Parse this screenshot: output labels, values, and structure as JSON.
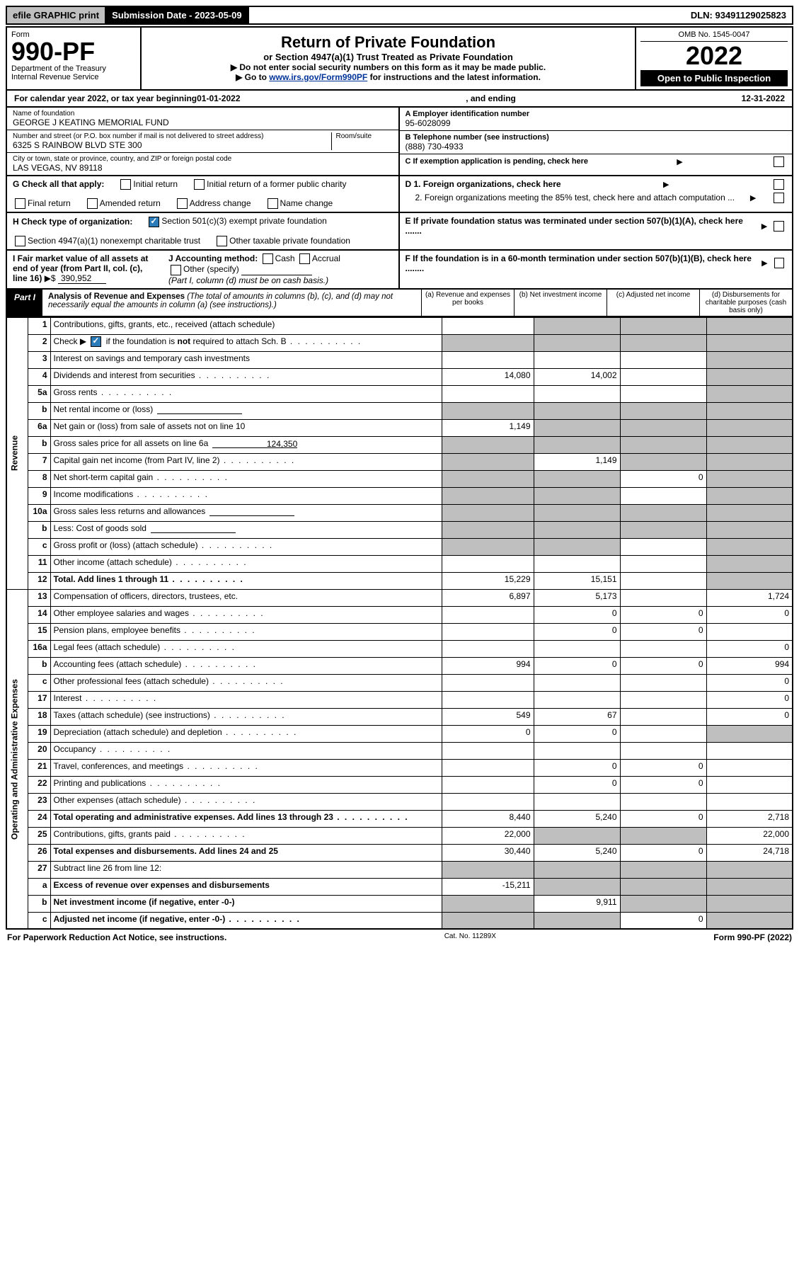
{
  "topbar": {
    "efile": "efile GRAPHIC print",
    "submission_label": "Submission Date - 2023-05-09",
    "dln_label": "DLN: 93491129025823"
  },
  "header": {
    "form_word": "Form",
    "form_number": "990-PF",
    "dept": "Department of the Treasury",
    "irs": "Internal Revenue Service",
    "title": "Return of Private Foundation",
    "subtitle": "or Section 4947(a)(1) Trust Treated as Private Foundation",
    "instr1": "▶ Do not enter social security numbers on this form as it may be made public.",
    "instr2_pre": "▶ Go to ",
    "instr2_link": "www.irs.gov/Form990PF",
    "instr2_post": " for instructions and the latest information.",
    "omb": "OMB No. 1545-0047",
    "year": "2022",
    "open": "Open to Public Inspection"
  },
  "calendar": {
    "text_pre": "For calendar year 2022, or tax year beginning ",
    "begin": "01-01-2022",
    "mid": " , and ending ",
    "end": "12-31-2022"
  },
  "foundation": {
    "name_label": "Name of foundation",
    "name": "GEORGE J KEATING MEMORIAL FUND",
    "addr_label": "Number and street (or P.O. box number if mail is not delivered to street address)",
    "room_label": "Room/suite",
    "addr": "6325 S RAINBOW BLVD STE 300",
    "city_label": "City or town, state or province, country, and ZIP or foreign postal code",
    "city": "LAS VEGAS, NV  89118",
    "ein_label": "A Employer identification number",
    "ein": "95-6028099",
    "phone_label": "B Telephone number (see instructions)",
    "phone": "(888) 730-4933",
    "c_label": "C If exemption application is pending, check here",
    "d1": "D 1. Foreign organizations, check here",
    "d2": "2. Foreign organizations meeting the 85% test, check here and attach computation ...",
    "e": "E  If private foundation status was terminated under section 507(b)(1)(A), check here .......",
    "f": "F  If the foundation is in a 60-month termination under section 507(b)(1)(B), check here ........"
  },
  "g": {
    "label": "G Check all that apply:",
    "items": [
      "Initial return",
      "Initial return of a former public charity",
      "Final return",
      "Amended return",
      "Address change",
      "Name change"
    ]
  },
  "h": {
    "label": "H Check type of organization:",
    "opt1": "Section 501(c)(3) exempt private foundation",
    "opt2": "Section 4947(a)(1) nonexempt charitable trust",
    "opt3": "Other taxable private foundation"
  },
  "i": {
    "label": "I Fair market value of all assets at end of year (from Part II, col. (c), line 16) ",
    "prefix": "▶$",
    "value": "390,952"
  },
  "j": {
    "label": "J Accounting method:",
    "cash": "Cash",
    "accrual": "Accrual",
    "other": "Other (specify)",
    "note": "(Part I, column (d) must be on cash basis.)"
  },
  "part1": {
    "label": "Part I",
    "title": "Analysis of Revenue and Expenses",
    "note": "(The total of amounts in columns (b), (c), and (d) may not necessarily equal the amounts in column (a) (see instructions).)",
    "col_a": "(a)   Revenue and expenses per books",
    "col_b": "(b)   Net investment income",
    "col_c": "(c)   Adjusted net income",
    "col_d": "(d)  Disbursements for charitable purposes (cash basis only)"
  },
  "sections": {
    "revenue": "Revenue",
    "expenses": "Operating and Administrative Expenses"
  },
  "rows": [
    {
      "n": "1",
      "desc": "Contributions, gifts, grants, etc., received (attach schedule)",
      "a": "",
      "b": "shade",
      "c": "shade",
      "d": "shade"
    },
    {
      "n": "2",
      "desc": "Check ▶ ☑ if the foundation is not required to attach Sch. B",
      "dots": true,
      "a": "shade",
      "b": "shade",
      "c": "shade",
      "d": "shade",
      "special": "check"
    },
    {
      "n": "3",
      "desc": "Interest on savings and temporary cash investments",
      "a": "",
      "b": "",
      "c": "",
      "d": "shade"
    },
    {
      "n": "4",
      "desc": "Dividends and interest from securities",
      "dots": true,
      "a": "14,080",
      "b": "14,002",
      "c": "",
      "d": "shade"
    },
    {
      "n": "5a",
      "desc": "Gross rents",
      "dots": true,
      "a": "",
      "b": "",
      "c": "",
      "d": "shade"
    },
    {
      "n": "b",
      "desc": "Net rental income or (loss)",
      "inline": true,
      "a": "shade",
      "b": "shade",
      "c": "shade",
      "d": "shade"
    },
    {
      "n": "6a",
      "desc": "Net gain or (loss) from sale of assets not on line 10",
      "a": "1,149",
      "b": "shade",
      "c": "shade",
      "d": "shade"
    },
    {
      "n": "b",
      "desc": "Gross sales price for all assets on line 6a",
      "inline": true,
      "inline_val": "124,350",
      "a": "shade",
      "b": "shade",
      "c": "shade",
      "d": "shade"
    },
    {
      "n": "7",
      "desc": "Capital gain net income (from Part IV, line 2)",
      "dots": true,
      "a": "shade",
      "b": "1,149",
      "c": "shade",
      "d": "shade"
    },
    {
      "n": "8",
      "desc": "Net short-term capital gain",
      "dots": true,
      "a": "shade",
      "b": "shade",
      "c": "0",
      "d": "shade"
    },
    {
      "n": "9",
      "desc": "Income modifications",
      "dots": true,
      "a": "shade",
      "b": "shade",
      "c": "",
      "d": "shade"
    },
    {
      "n": "10a",
      "desc": "Gross sales less returns and allowances",
      "inline": true,
      "a": "shade",
      "b": "shade",
      "c": "shade",
      "d": "shade"
    },
    {
      "n": "b",
      "desc": "Less: Cost of goods sold",
      "dots": true,
      "inline": true,
      "a": "shade",
      "b": "shade",
      "c": "shade",
      "d": "shade"
    },
    {
      "n": "c",
      "desc": "Gross profit or (loss) (attach schedule)",
      "dots": true,
      "a": "shade",
      "b": "shade",
      "c": "",
      "d": "shade"
    },
    {
      "n": "11",
      "desc": "Other income (attach schedule)",
      "dots": true,
      "a": "",
      "b": "",
      "c": "",
      "d": "shade"
    },
    {
      "n": "12",
      "desc": "Total. Add lines 1 through 11",
      "dots": true,
      "bold": true,
      "a": "15,229",
      "b": "15,151",
      "c": "",
      "d": "shade"
    }
  ],
  "exp_rows": [
    {
      "n": "13",
      "desc": "Compensation of officers, directors, trustees, etc.",
      "a": "6,897",
      "b": "5,173",
      "c": "",
      "d": "1,724"
    },
    {
      "n": "14",
      "desc": "Other employee salaries and wages",
      "dots": true,
      "a": "",
      "b": "0",
      "c": "0",
      "d": "0"
    },
    {
      "n": "15",
      "desc": "Pension plans, employee benefits",
      "dots": true,
      "a": "",
      "b": "0",
      "c": "0",
      "d": ""
    },
    {
      "n": "16a",
      "desc": "Legal fees (attach schedule)",
      "dots": true,
      "a": "",
      "b": "",
      "c": "",
      "d": "0"
    },
    {
      "n": "b",
      "desc": "Accounting fees (attach schedule)",
      "dots": true,
      "a": "994",
      "b": "0",
      "c": "0",
      "d": "994"
    },
    {
      "n": "c",
      "desc": "Other professional fees (attach schedule)",
      "dots": true,
      "a": "",
      "b": "",
      "c": "",
      "d": "0"
    },
    {
      "n": "17",
      "desc": "Interest",
      "dots": true,
      "a": "",
      "b": "",
      "c": "",
      "d": "0"
    },
    {
      "n": "18",
      "desc": "Taxes (attach schedule) (see instructions)",
      "dots": true,
      "a": "549",
      "b": "67",
      "c": "",
      "d": "0"
    },
    {
      "n": "19",
      "desc": "Depreciation (attach schedule) and depletion",
      "dots": true,
      "a": "0",
      "b": "0",
      "c": "",
      "d": "shade"
    },
    {
      "n": "20",
      "desc": "Occupancy",
      "dots": true,
      "a": "",
      "b": "",
      "c": "",
      "d": ""
    },
    {
      "n": "21",
      "desc": "Travel, conferences, and meetings",
      "dots": true,
      "a": "",
      "b": "0",
      "c": "0",
      "d": ""
    },
    {
      "n": "22",
      "desc": "Printing and publications",
      "dots": true,
      "a": "",
      "b": "0",
      "c": "0",
      "d": ""
    },
    {
      "n": "23",
      "desc": "Other expenses (attach schedule)",
      "dots": true,
      "a": "",
      "b": "",
      "c": "",
      "d": ""
    },
    {
      "n": "24",
      "desc": "Total operating and administrative expenses. Add lines 13 through 23",
      "dots": true,
      "bold": true,
      "a": "8,440",
      "b": "5,240",
      "c": "0",
      "d": "2,718"
    },
    {
      "n": "25",
      "desc": "Contributions, gifts, grants paid",
      "dots": true,
      "a": "22,000",
      "b": "shade",
      "c": "shade",
      "d": "22,000"
    },
    {
      "n": "26",
      "desc": "Total expenses and disbursements. Add lines 24 and 25",
      "bold": true,
      "a": "30,440",
      "b": "5,240",
      "c": "0",
      "d": "24,718"
    },
    {
      "n": "27",
      "desc": "Subtract line 26 from line 12:",
      "a": "shade",
      "b": "shade",
      "c": "shade",
      "d": "shade"
    },
    {
      "n": "a",
      "desc": "Excess of revenue over expenses and disbursements",
      "bold": true,
      "a": "-15,211",
      "b": "shade",
      "c": "shade",
      "d": "shade"
    },
    {
      "n": "b",
      "desc": "Net investment income (if negative, enter -0-)",
      "bold": true,
      "a": "shade",
      "b": "9,911",
      "c": "shade",
      "d": "shade"
    },
    {
      "n": "c",
      "desc": "Adjusted net income (if negative, enter -0-)",
      "dots": true,
      "bold": true,
      "a": "shade",
      "b": "shade",
      "c": "0",
      "d": "shade"
    }
  ],
  "footer": {
    "left": "For Paperwork Reduction Act Notice, see instructions.",
    "mid": "Cat. No. 11289X",
    "right": "Form 990-PF (2022)"
  }
}
